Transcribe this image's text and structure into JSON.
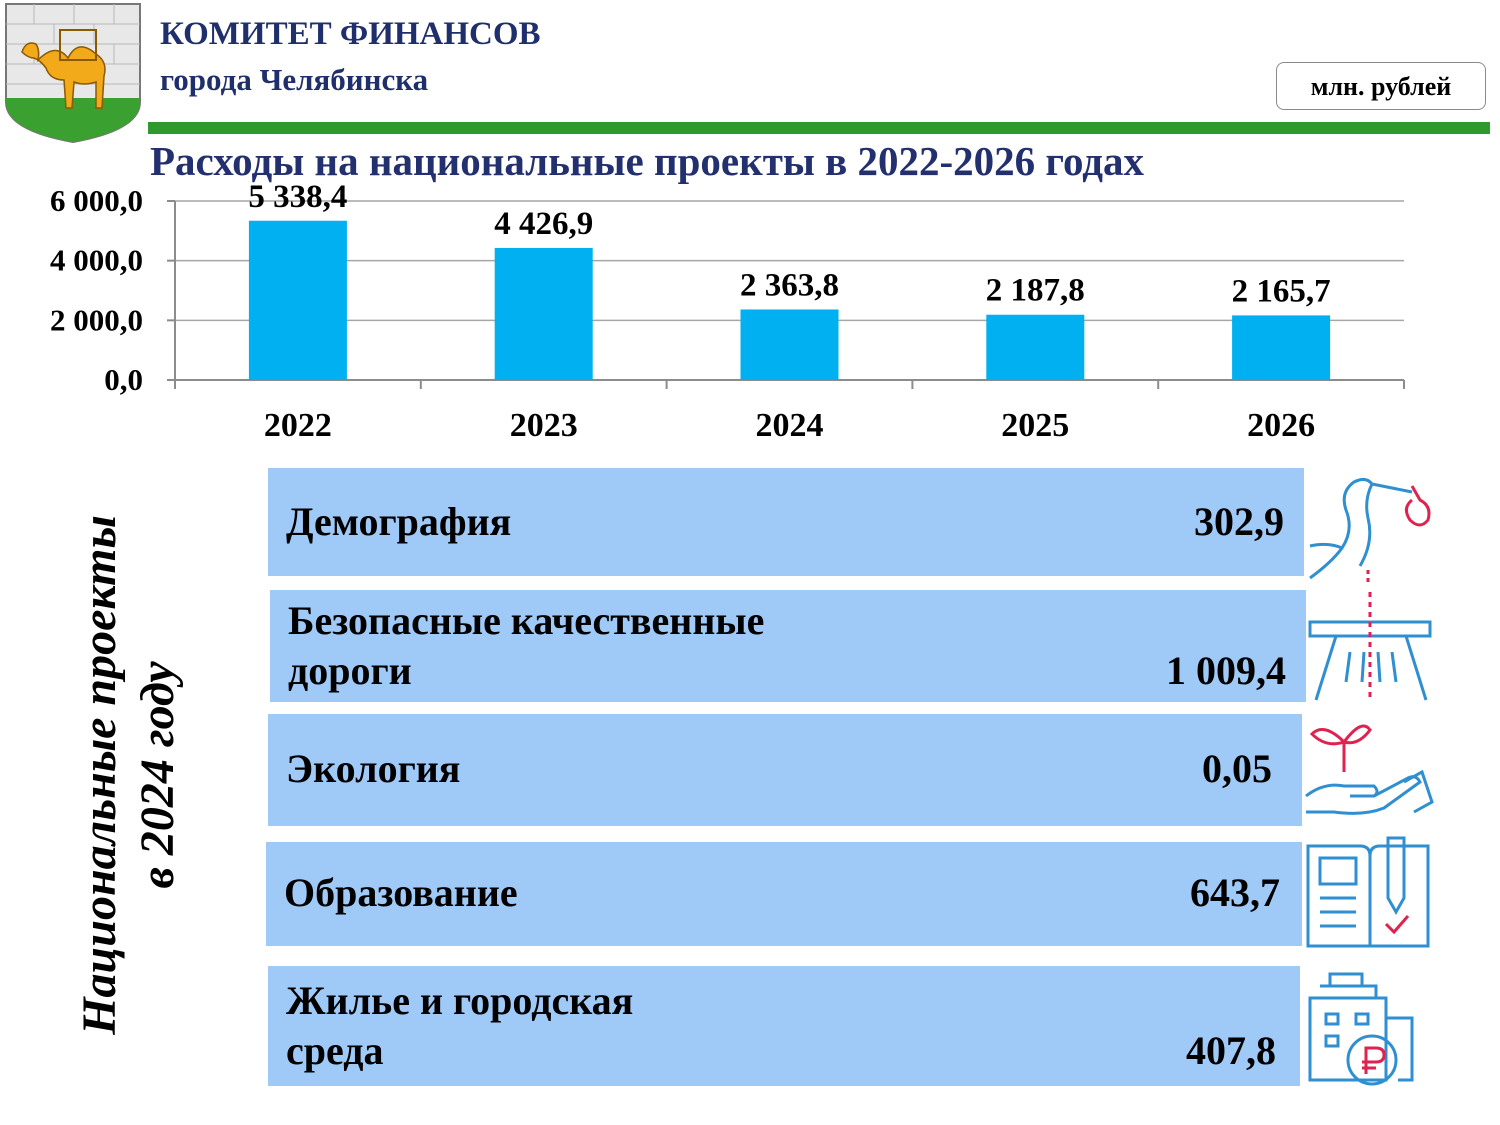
{
  "header": {
    "org_title": "КОМИТЕТ ФИНАНСОВ",
    "org_subtitle": "города Челябинска",
    "units": "млн. рублей"
  },
  "colors": {
    "bar": "#00b0f0",
    "green_line": "#2e9a2e",
    "title_blue": "#23306f",
    "project_bg": "#9fcaf8",
    "icon_blue": "#2f8fd0",
    "icon_red": "#e0224f"
  },
  "chart_data": {
    "type": "bar",
    "title": "Расходы на национальные проекты в 2022-2026 годах",
    "categories": [
      "2022",
      "2023",
      "2024",
      "2025",
      "2026"
    ],
    "values": [
      5338.4,
      4426.9,
      2363.8,
      2187.8,
      2165.7
    ],
    "value_labels": [
      "5 338,4",
      "4 426,9",
      "2 363,8",
      "2 187,8",
      "2 165,7"
    ],
    "yticks": [
      0,
      2000,
      4000,
      6000
    ],
    "ytick_labels": [
      "0,0",
      "2 000,0",
      "4 000,0",
      "6 000,0"
    ],
    "ylim": [
      0,
      6000
    ],
    "grid": true,
    "legend": "none"
  },
  "projects": {
    "title_line1": "Национальные проекты",
    "title_line2": "в 2024 году",
    "items": [
      {
        "name_line1": "Демография",
        "name_line2": "",
        "value": "302,9",
        "icon": "stork-icon"
      },
      {
        "name_line1": "Безопасные качественные",
        "name_line2": "дороги",
        "value": "1 009,4",
        "icon": "road-icon"
      },
      {
        "name_line1": "Экология",
        "name_line2": "",
        "value": "0,05",
        "icon": "sprout-hand-icon"
      },
      {
        "name_line1": "Образование",
        "name_line2": "",
        "value": "643,7",
        "icon": "book-pen-icon"
      },
      {
        "name_line1": "Жилье и городская",
        "name_line2": "среда",
        "value": "407,8",
        "icon": "house-ruble-icon"
      }
    ]
  }
}
